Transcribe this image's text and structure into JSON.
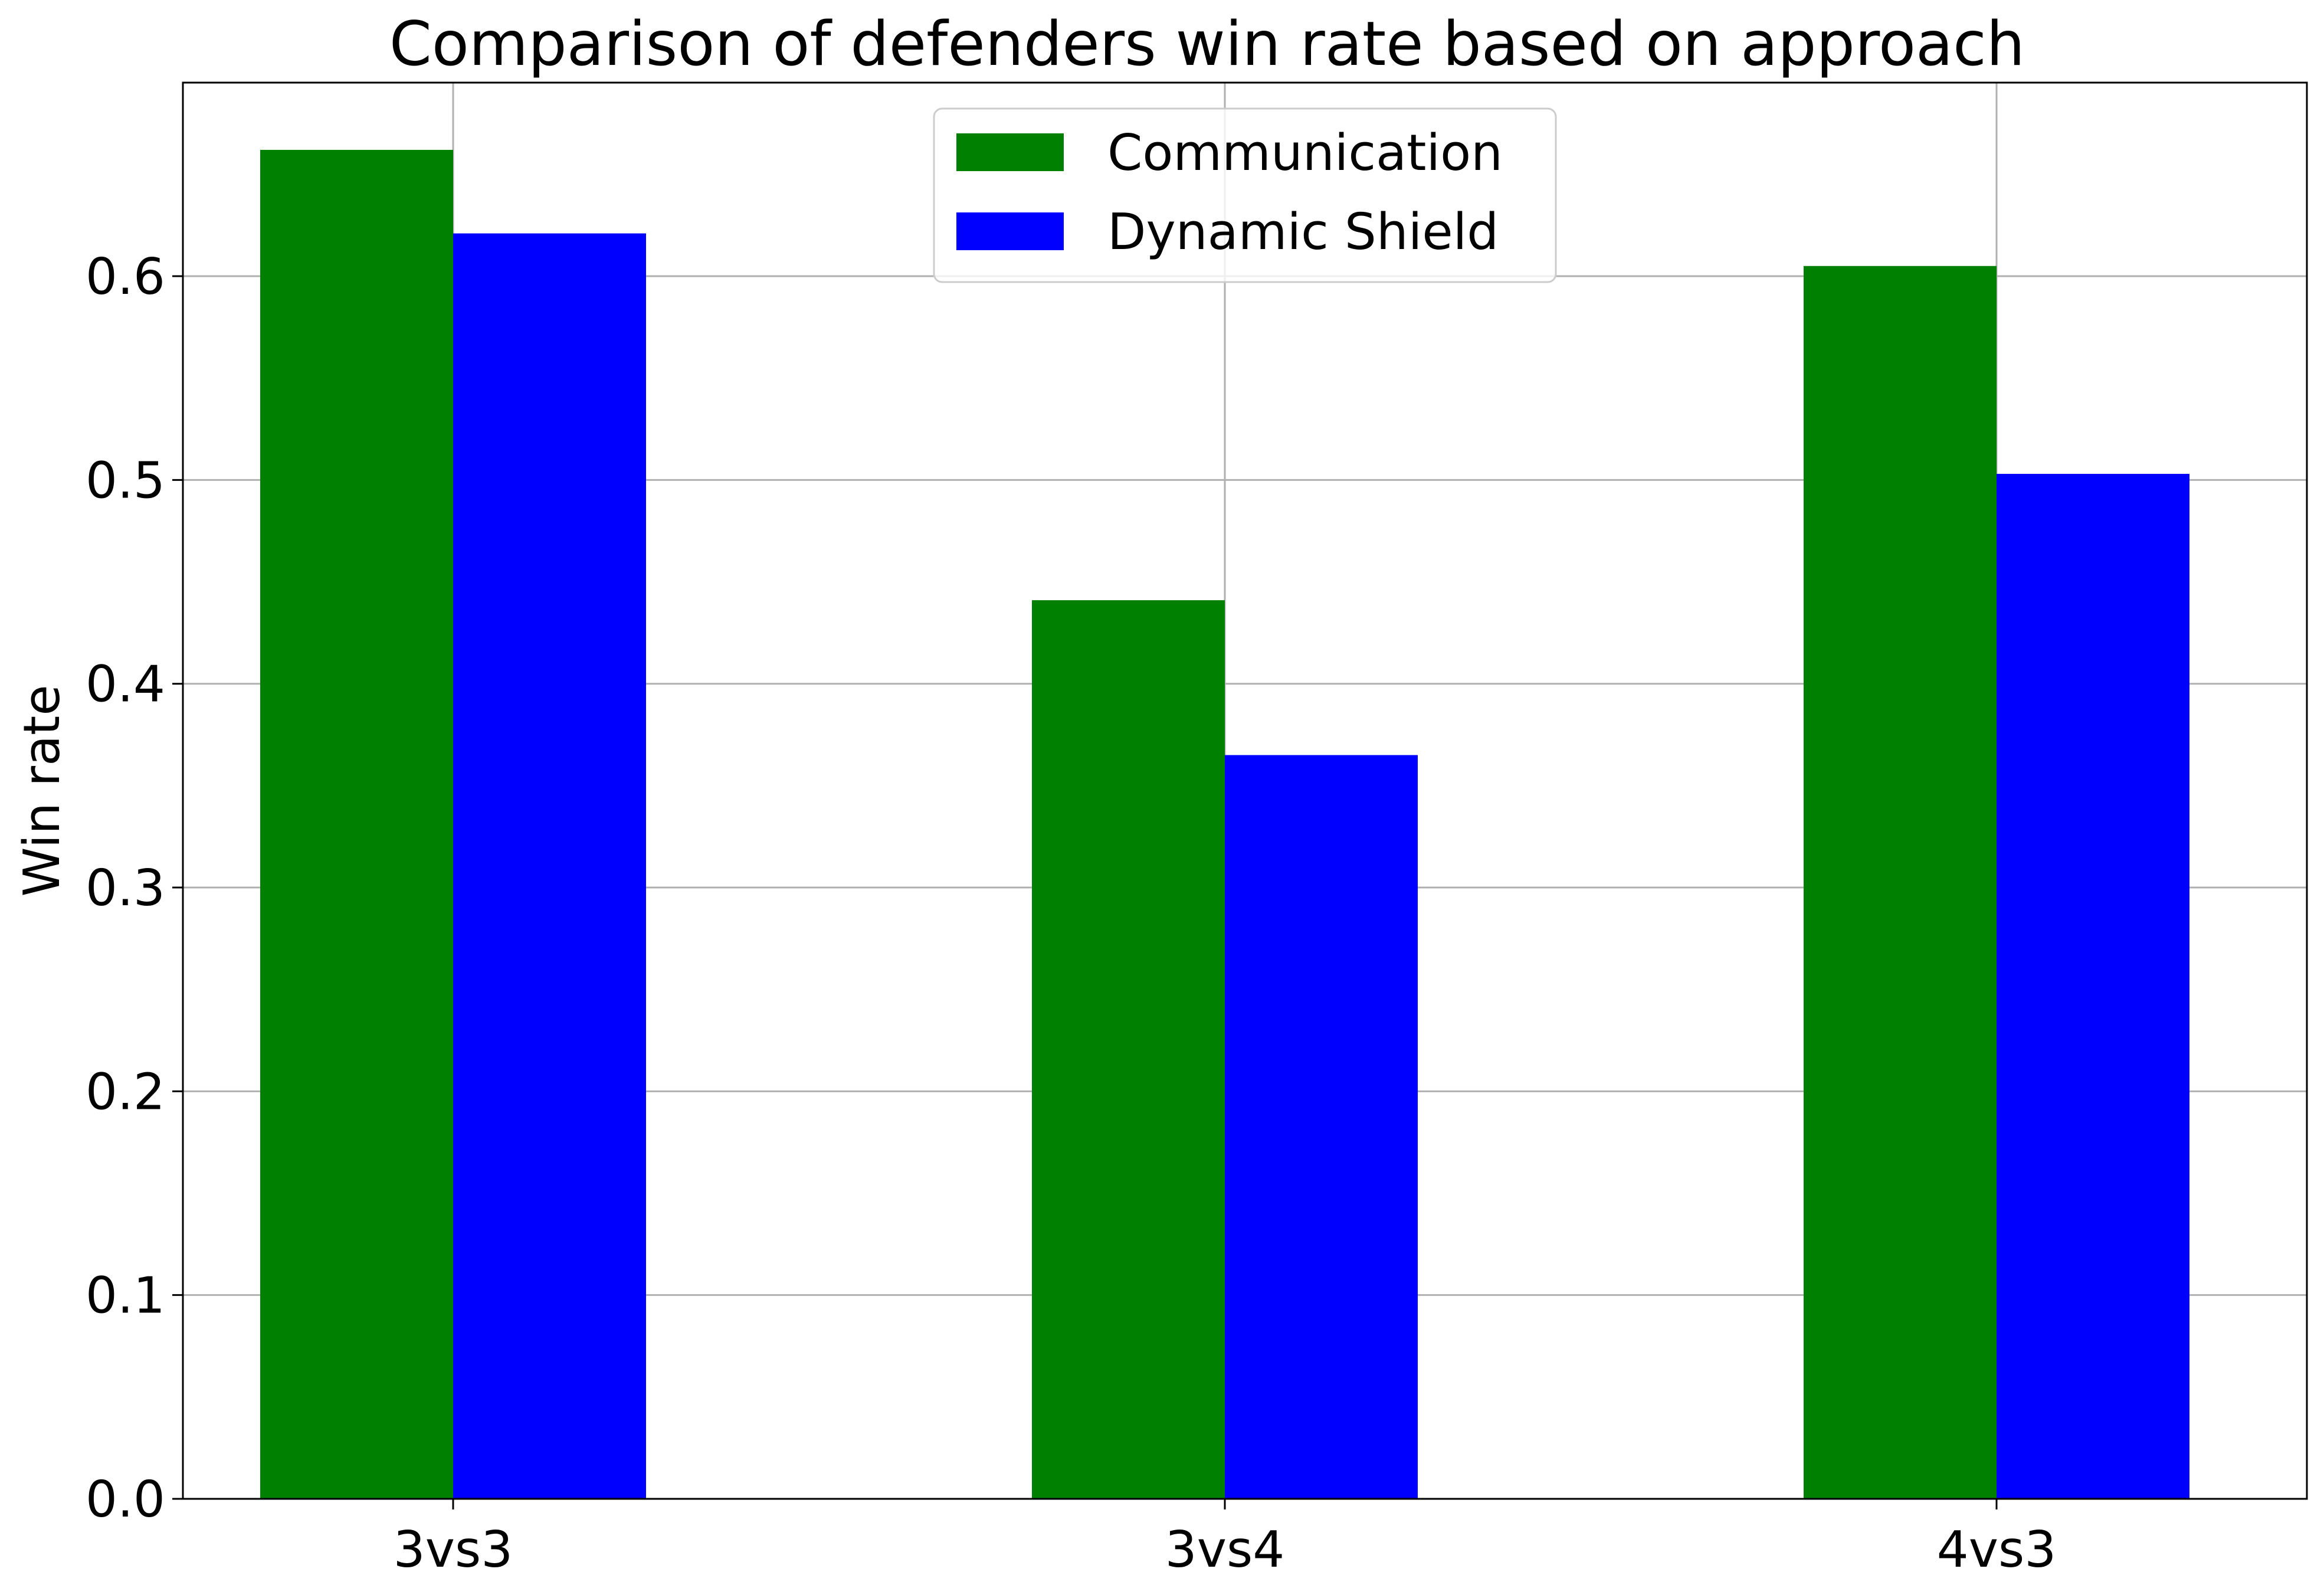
{
  "chart_data": {
    "type": "bar",
    "title": "Comparison of defenders win rate based on approach",
    "xlabel": "",
    "ylabel": "Win rate",
    "categories": [
      "3vs3",
      "3vs4",
      "4vs3"
    ],
    "series": [
      {
        "name": "Communication",
        "color": "#008000",
        "values": [
          0.662,
          0.441,
          0.605
        ]
      },
      {
        "name": "Dynamic Shield",
        "color": "#0000ff",
        "values": [
          0.621,
          0.365,
          0.503
        ]
      }
    ],
    "ylim": [
      0,
      0.695
    ],
    "yticks": [
      0.0,
      0.1,
      0.2,
      0.3,
      0.4,
      0.5,
      0.6
    ],
    "ytick_labels": [
      "0.0",
      "0.1",
      "0.2",
      "0.3",
      "0.4",
      "0.5",
      "0.6"
    ],
    "grid": true,
    "legend_position": "top-center"
  }
}
